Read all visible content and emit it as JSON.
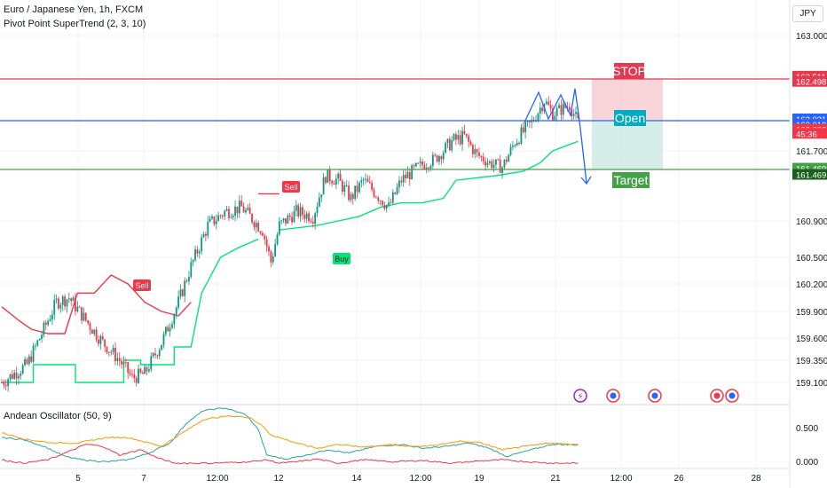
{
  "header": {
    "symbol_line": "Euro / Japanese Yen, 1h, FXCM",
    "indicator_line": "Pivot Point SuperTrend (2, 3, 10)"
  },
  "currency_button": "JPY",
  "oscillator": {
    "label": "Andean Oscillator (50, 9)"
  },
  "labels": {
    "stop": "STOP",
    "open": "Open",
    "target": "Target",
    "sell": "Sell",
    "buy": "Buy"
  },
  "colors": {
    "up": "#089981",
    "down": "#f23645",
    "supertrend_up": "#00e676",
    "supertrend_down": "#f23645",
    "stop_line": "#e53950",
    "open_line": "#2962ff",
    "target_line": "#43a047",
    "stop_zone": "#f7c5cb",
    "target_zone": "#cfeae5",
    "arrow": "#2962ff",
    "osc_green": "#26a69a",
    "osc_orange": "#ff9800",
    "osc_red": "#f23645"
  },
  "price_tags": [
    {
      "text": "162.511",
      "bg": "#e53950",
      "price": 162.53
    },
    {
      "text": "162.498",
      "bg": "#e53950",
      "price": 162.47
    },
    {
      "text": "162.021",
      "bg": "#2962ff",
      "price": 162.04
    },
    {
      "text": "162.019",
      "bg": "#2962ff",
      "price": 161.98
    },
    {
      "text": "162.002",
      "bg": "#f23645",
      "price": 161.93
    },
    {
      "text": "45:36",
      "bg": "#f23645",
      "price": 161.885
    },
    {
      "text": "161.469",
      "bg": "#43a047",
      "price": 161.485
    },
    {
      "text": "161.469",
      "bg": "#1b5e20",
      "price": 161.415
    }
  ],
  "chart_data": [
    {
      "type": "candlestick",
      "title": "Euro / Japanese Yen, 1h, FXCM",
      "y_axis_ticks": [
        "163.000",
        "161.700",
        "160.900",
        "160.500",
        "160.200",
        "159.900",
        "159.600",
        "159.350",
        "159.100"
      ],
      "x_axis_ticks": [
        "5",
        "7",
        "12:00",
        "12",
        "14",
        "12:00",
        "19",
        "21",
        "12:00",
        "26",
        "28"
      ],
      "levels": {
        "stop": 162.498,
        "open": 162.019,
        "target": 161.469
      },
      "anchors": [
        [
          0,
          159.1
        ],
        [
          12,
          159.3
        ],
        [
          20,
          159.7
        ],
        [
          26,
          160.0
        ],
        [
          32,
          160.05
        ],
        [
          40,
          159.8
        ],
        [
          48,
          159.55
        ],
        [
          56,
          159.35
        ],
        [
          62,
          159.15
        ],
        [
          68,
          159.2
        ],
        [
          76,
          159.55
        ],
        [
          84,
          160.0
        ],
        [
          90,
          160.4
        ],
        [
          98,
          160.85
        ],
        [
          106,
          161.0
        ],
        [
          114,
          161.05
        ],
        [
          120,
          160.9
        ],
        [
          124,
          160.8
        ],
        [
          128,
          160.45
        ],
        [
          132,
          160.85
        ],
        [
          140,
          161.0
        ],
        [
          148,
          160.95
        ],
        [
          154,
          161.4
        ],
        [
          160,
          161.35
        ],
        [
          166,
          161.15
        ],
        [
          172,
          161.35
        ],
        [
          178,
          161.2
        ],
        [
          184,
          161.05
        ],
        [
          190,
          161.35
        ],
        [
          198,
          161.5
        ],
        [
          206,
          161.6
        ],
        [
          214,
          161.8
        ],
        [
          220,
          161.85
        ],
        [
          226,
          161.65
        ],
        [
          232,
          161.55
        ],
        [
          238,
          161.5
        ],
        [
          244,
          161.8
        ],
        [
          252,
          162.0
        ],
        [
          258,
          162.25
        ],
        [
          262,
          162.1
        ],
        [
          266,
          162.15
        ],
        [
          270,
          162.2
        ],
        [
          274,
          162.0
        ]
      ],
      "supertrend_up_segments": [
        [
          [
            0,
            159.1
          ],
          [
            15,
            159.1
          ],
          [
            15,
            159.3
          ],
          [
            35,
            159.3
          ],
          [
            35,
            159.1
          ],
          [
            58,
            159.1
          ],
          [
            58,
            159.35
          ],
          [
            66,
            159.35
          ],
          [
            66,
            159.3
          ],
          [
            82,
            159.3
          ],
          [
            82,
            159.5
          ],
          [
            90,
            159.5
          ],
          [
            95,
            160.1
          ],
          [
            104,
            160.5
          ],
          [
            112,
            160.6
          ],
          [
            122,
            160.7
          ]
        ],
        [
          [
            132,
            160.8
          ],
          [
            150,
            160.85
          ],
          [
            160,
            160.9
          ],
          [
            170,
            160.95
          ],
          [
            180,
            161.05
          ],
          [
            190,
            161.1
          ],
          [
            200,
            161.1
          ],
          [
            210,
            161.15
          ],
          [
            216,
            161.35
          ],
          [
            235,
            161.4
          ],
          [
            248,
            161.45
          ],
          [
            256,
            161.55
          ],
          [
            262,
            161.7
          ],
          [
            274,
            161.8
          ]
        ]
      ],
      "supertrend_down_segments": [
        [
          [
            0,
            159.95
          ],
          [
            8,
            159.8
          ],
          [
            14,
            159.7
          ],
          [
            22,
            159.65
          ],
          [
            30,
            159.65
          ],
          [
            36,
            160.1
          ],
          [
            44,
            160.1
          ],
          [
            52,
            160.3
          ],
          [
            60,
            160.2
          ],
          [
            68,
            160.0
          ],
          [
            76,
            159.9
          ],
          [
            84,
            159.85
          ],
          [
            90,
            160.0
          ]
        ],
        [
          [
            122,
            161.2
          ],
          [
            132,
            161.2
          ]
        ]
      ],
      "trade_setup": {
        "stop_price": 162.498,
        "entry_price": 162.019,
        "target_price": 161.469
      },
      "signals": [
        {
          "label": "Sell",
          "bar": 57
        },
        {
          "label": "Sell",
          "bar": 120
        },
        {
          "label": "Buy",
          "bar": 139
        }
      ]
    },
    {
      "type": "line",
      "title": "Andean Oscillator (50, 9)",
      "y_axis_ticks": [
        "0.500",
        "0.000"
      ],
      "series": [
        {
          "color": "#26a69a",
          "anchors": [
            [
              0,
              0.38
            ],
            [
              10,
              0.35
            ],
            [
              20,
              0.25
            ],
            [
              30,
              0.1
            ],
            [
              38,
              0.05
            ],
            [
              50,
              0.02
            ],
            [
              60,
              0.05
            ],
            [
              70,
              0.15
            ],
            [
              80,
              0.3
            ],
            [
              88,
              0.6
            ],
            [
              96,
              0.78
            ],
            [
              106,
              0.82
            ],
            [
              116,
              0.72
            ],
            [
              122,
              0.5
            ],
            [
              126,
              0.12
            ],
            [
              135,
              0.06
            ],
            [
              145,
              0.12
            ],
            [
              155,
              0.2
            ],
            [
              165,
              0.15
            ],
            [
              178,
              0.25
            ],
            [
              190,
              0.28
            ],
            [
              200,
              0.22
            ],
            [
              212,
              0.25
            ],
            [
              222,
              0.3
            ],
            [
              232,
              0.22
            ],
            [
              240,
              0.1
            ],
            [
              252,
              0.2
            ],
            [
              262,
              0.28
            ],
            [
              274,
              0.27
            ]
          ]
        },
        {
          "color": "#ff9800",
          "anchors": [
            [
              0,
              0.45
            ],
            [
              12,
              0.35
            ],
            [
              24,
              0.3
            ],
            [
              36,
              0.3
            ],
            [
              50,
              0.38
            ],
            [
              60,
              0.38
            ],
            [
              70,
              0.3
            ],
            [
              76,
              0.25
            ],
            [
              86,
              0.45
            ],
            [
              96,
              0.65
            ],
            [
              108,
              0.7
            ],
            [
              118,
              0.68
            ],
            [
              124,
              0.55
            ],
            [
              128,
              0.42
            ],
            [
              140,
              0.3
            ],
            [
              150,
              0.22
            ],
            [
              160,
              0.28
            ],
            [
              170,
              0.24
            ],
            [
              184,
              0.27
            ],
            [
              196,
              0.25
            ],
            [
              206,
              0.26
            ],
            [
              218,
              0.33
            ],
            [
              228,
              0.3
            ],
            [
              238,
              0.2
            ],
            [
              248,
              0.25
            ],
            [
              260,
              0.3
            ],
            [
              274,
              0.28
            ]
          ]
        },
        {
          "color": "#f23645",
          "anchors": [
            [
              0,
              0.05
            ],
            [
              10,
              0.0
            ],
            [
              22,
              0.05
            ],
            [
              34,
              0.2
            ],
            [
              40,
              0.28
            ],
            [
              48,
              0.25
            ],
            [
              56,
              0.12
            ],
            [
              66,
              0.2
            ],
            [
              74,
              0.08
            ],
            [
              82,
              0.0
            ],
            [
              100,
              0.0
            ],
            [
              118,
              0.02
            ],
            [
              126,
              0.05
            ],
            [
              132,
              0.0
            ],
            [
              140,
              0.02
            ],
            [
              150,
              0.06
            ],
            [
              160,
              0.0
            ],
            [
              172,
              0.05
            ],
            [
              186,
              0.02
            ],
            [
              200,
              0.04
            ],
            [
              214,
              0.0
            ],
            [
              226,
              0.03
            ],
            [
              238,
              0.05
            ],
            [
              250,
              0.02
            ],
            [
              262,
              0.0
            ],
            [
              274,
              0.0
            ]
          ]
        }
      ]
    }
  ],
  "event_icons": [
    {
      "name": "lightning-event-icon",
      "glyph": "⚡",
      "ring": "#9c27b0",
      "inner": "#9c27b0",
      "x": 654
    },
    {
      "name": "globe-event-icon",
      "glyph": "",
      "ring": "#f23645",
      "inner": "#2962ff",
      "x": 691
    },
    {
      "name": "globe-event-icon",
      "glyph": "",
      "ring": "#f23645",
      "inner": "#2962ff",
      "x": 738
    },
    {
      "name": "dot-event-icon",
      "glyph": "",
      "ring": "#f23645",
      "inner": "#f23645",
      "x": 808
    },
    {
      "name": "globe-event-icon",
      "glyph": "",
      "ring": "#f23645",
      "inner": "#2962ff",
      "x": 825
    }
  ]
}
